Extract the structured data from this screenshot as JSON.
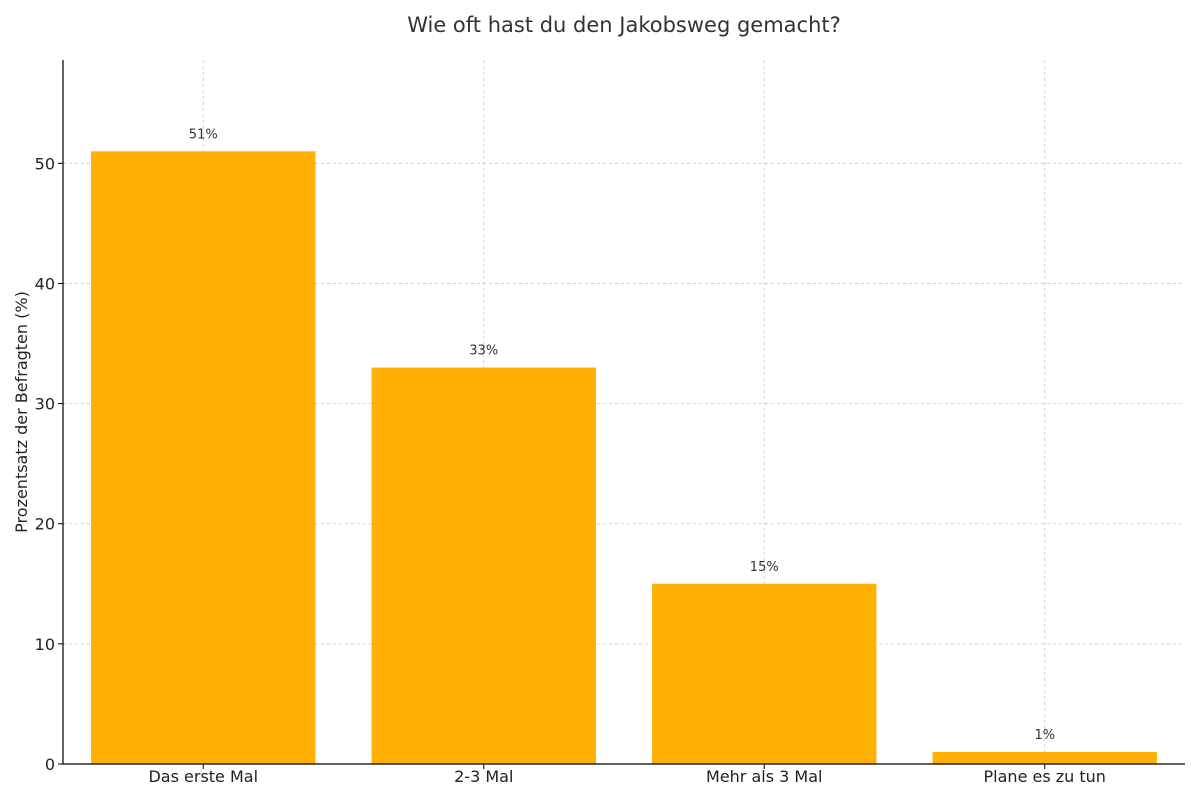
{
  "chart_data": {
    "type": "bar",
    "title": "Wie oft hast du den Jakobsweg gemacht?",
    "xlabel": "",
    "ylabel": "Prozentsatz der Befragten (%)",
    "categories": [
      "Das erste Mal",
      "2-3 Mal",
      "Mehr als 3 Mal",
      "Plane es zu tun"
    ],
    "values": [
      51,
      33,
      15,
      1
    ],
    "data_labels": [
      "51%",
      "33%",
      "15%",
      "1%"
    ],
    "ylim": [
      0,
      58.6
    ],
    "yticks": [
      0,
      10,
      20,
      30,
      40,
      50
    ],
    "grid": true,
    "bar_color": "#FFB000",
    "label_color": "#333333"
  }
}
